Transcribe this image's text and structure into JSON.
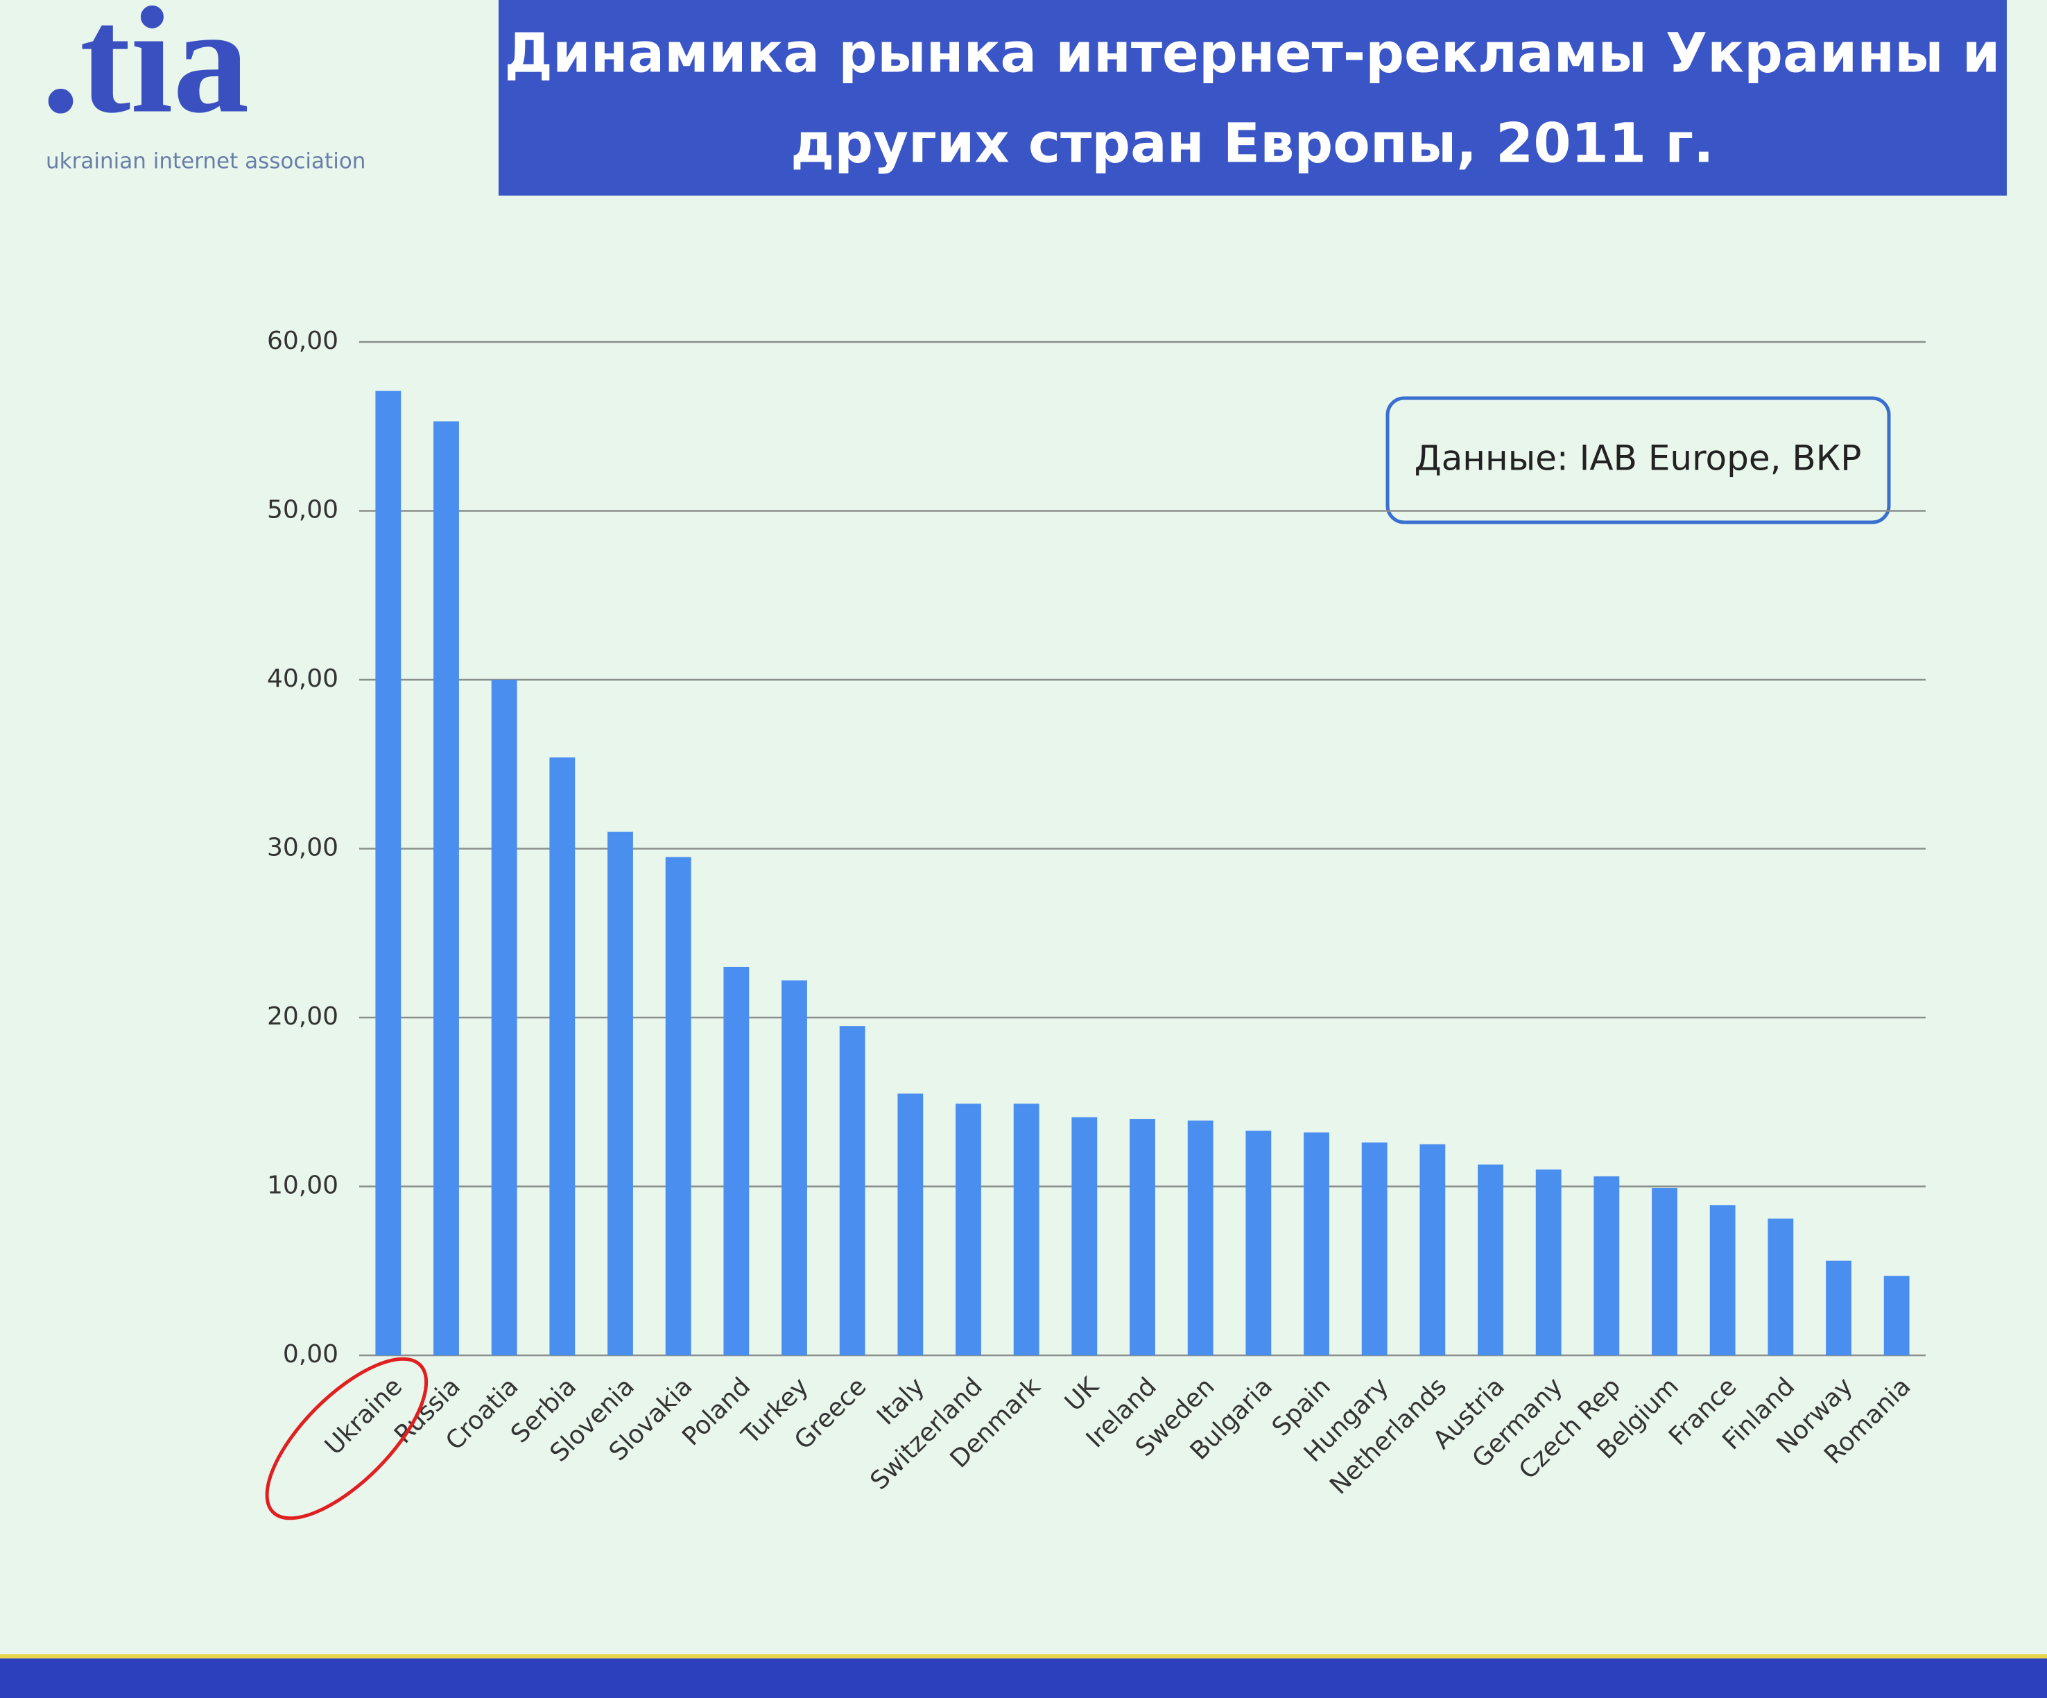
{
  "logo": {
    "mark": ".tia",
    "tagline": "ukrainian internet association"
  },
  "chart_data": {
    "type": "bar",
    "title": [
      "Динамика рынка интернет-рекламы Украины и",
      "других стран Европы, 2011 г."
    ],
    "annotation": "Данные: IAB Europe, ВКР",
    "categories": [
      "Ukraine",
      "Russia",
      "Croatia",
      "Serbia",
      "Slovenia",
      "Slovakia",
      "Poland",
      "Turkey",
      "Greece",
      "Italy",
      "Switzerland",
      "Denmark",
      "UK",
      "Ireland",
      "Sweden",
      "Bulgaria",
      "Spain",
      "Hungary",
      "Netherlands",
      "Austria",
      "Germany",
      "Czech Rep",
      "Belgium",
      "France",
      "Finland",
      "Norway",
      "Romania"
    ],
    "values": [
      57.1,
      55.3,
      40.0,
      35.4,
      31.0,
      29.5,
      23.0,
      22.2,
      19.5,
      15.5,
      14.9,
      14.9,
      14.1,
      14.0,
      13.9,
      13.3,
      13.2,
      12.6,
      12.5,
      11.3,
      11.0,
      10.6,
      9.9,
      8.9,
      8.1,
      5.6,
      4.7
    ],
    "color": "#4a8ef0",
    "ylim": [
      0,
      60
    ],
    "yticks": [
      {
        "value": 0,
        "label": "0,00"
      },
      {
        "value": 10,
        "label": "10,00"
      },
      {
        "value": 20,
        "label": "20,00"
      },
      {
        "value": 30,
        "label": "30,00"
      },
      {
        "value": 40,
        "label": "40,00"
      },
      {
        "value": 50,
        "label": "50,00"
      },
      {
        "value": 60,
        "label": "60,00"
      }
    ],
    "grid": true
  }
}
